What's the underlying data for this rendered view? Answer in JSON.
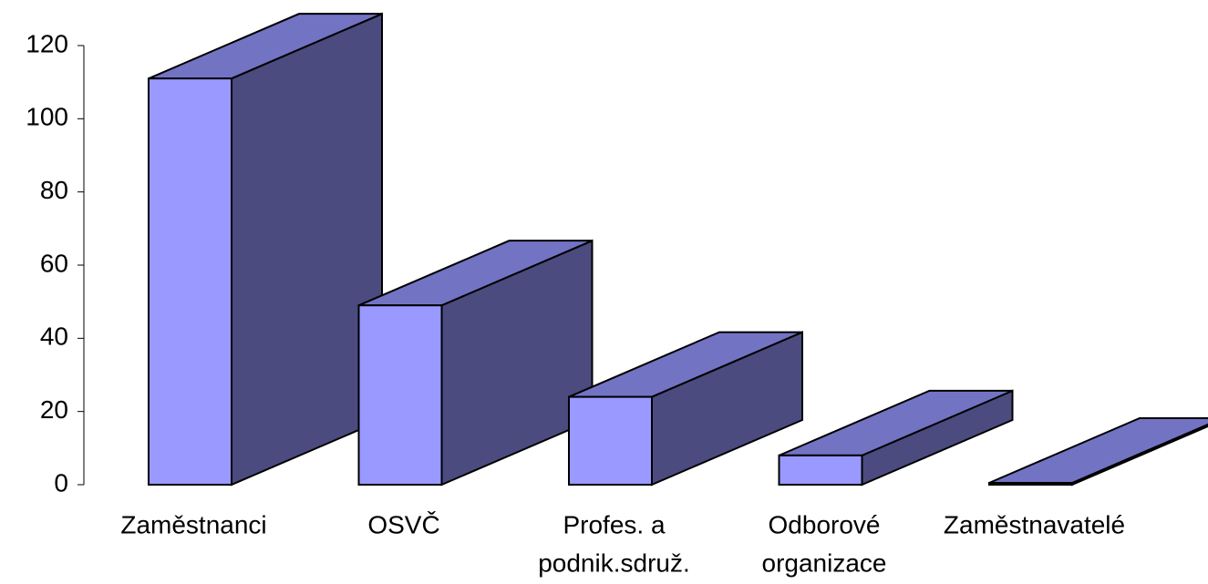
{
  "chart_data": {
    "type": "bar3d",
    "categories": [
      [
        "Zaměstnanci"
      ],
      [
        "OSVČ"
      ],
      [
        "Profes. a",
        "podnik.sdruž."
      ],
      [
        "Odborové",
        "organizace"
      ],
      [
        "Zaměstnavatelé"
      ]
    ],
    "values": [
      111,
      49,
      24,
      8,
      0.5
    ],
    "colors": {
      "front": "#9999ff",
      "top": "#7373c4",
      "side": "#4b4b80"
    },
    "ylim": [
      0,
      120
    ],
    "yticks": [
      0,
      20,
      40,
      60,
      80,
      100,
      120
    ]
  }
}
